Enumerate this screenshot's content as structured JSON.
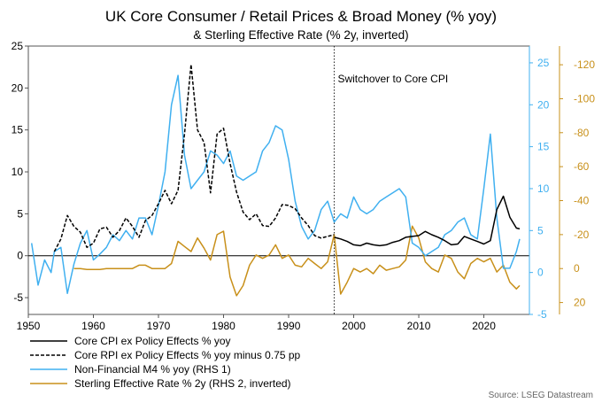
{
  "chart_data": {
    "type": "line",
    "title": "UK Core Consumer / Retail Prices & Broad Money (% yoy)",
    "subtitle": "& Sterling Effective Rate (% 2y, inverted)",
    "annotation": "Switchover to Core CPI",
    "switchover_year": 1997,
    "source": "Source: LSEG Datastream",
    "x_axis": {
      "range": [
        1950,
        2027
      ],
      "ticks": [
        1950,
        1960,
        1970,
        1980,
        1990,
        2000,
        2010,
        2020
      ]
    },
    "y_left": {
      "range": [
        -7,
        25
      ],
      "ticks": [
        -5,
        0,
        5,
        10,
        15,
        20,
        25
      ]
    },
    "y_right1": {
      "range": [
        -5,
        27
      ],
      "ticks": [
        -5,
        0,
        5,
        10,
        15,
        20,
        25
      ],
      "color": "#40b0f0"
    },
    "y_right2": {
      "range": [
        27,
        -131
      ],
      "inverted": true,
      "ticks": [
        "20",
        "0",
        "-20",
        "-40",
        "-60",
        "-80",
        "-100",
        "-120"
      ],
      "tick_values": [
        20,
        0,
        -20,
        -40,
        -60,
        -80,
        -100,
        -120
      ],
      "color": "#c8901a"
    },
    "series": [
      {
        "name": "Core CPI ex Policy Effects % yoy",
        "axis": "left",
        "color": "#000000",
        "style": "solid",
        "points": [
          [
            1997,
            2.2
          ],
          [
            1998,
            2.0
          ],
          [
            1999,
            1.7
          ],
          [
            2000,
            1.3
          ],
          [
            2001,
            1.2
          ],
          [
            2002,
            1.5
          ],
          [
            2003,
            1.3
          ],
          [
            2004,
            1.2
          ],
          [
            2005,
            1.3
          ],
          [
            2006,
            1.6
          ],
          [
            2007,
            1.8
          ],
          [
            2008,
            2.2
          ],
          [
            2009,
            2.3
          ],
          [
            2010,
            2.4
          ],
          [
            2011,
            2.9
          ],
          [
            2012,
            2.5
          ],
          [
            2013,
            2.2
          ],
          [
            2014,
            1.8
          ],
          [
            2015,
            1.3
          ],
          [
            2016,
            1.4
          ],
          [
            2017,
            2.3
          ],
          [
            2018,
            2.0
          ],
          [
            2019,
            1.7
          ],
          [
            2020,
            1.4
          ],
          [
            2021,
            1.8
          ],
          [
            2022,
            5.5
          ],
          [
            2023,
            7.1
          ],
          [
            2024,
            4.6
          ],
          [
            2025,
            3.3
          ],
          [
            2025.5,
            3.2
          ]
        ]
      },
      {
        "name": "Core RPI ex Policy Effects % yoy minus 0.75 pp",
        "axis": "left",
        "color": "#000000",
        "style": "dashed",
        "points": [
          [
            1954,
            0.5
          ],
          [
            1955,
            2.0
          ],
          [
            1956,
            4.8
          ],
          [
            1957,
            3.5
          ],
          [
            1958,
            2.8
          ],
          [
            1959,
            1.0
          ],
          [
            1960,
            1.5
          ],
          [
            1961,
            3.2
          ],
          [
            1962,
            3.4
          ],
          [
            1963,
            2.2
          ],
          [
            1964,
            3.0
          ],
          [
            1965,
            4.5
          ],
          [
            1966,
            3.5
          ],
          [
            1967,
            2.2
          ],
          [
            1968,
            4.2
          ],
          [
            1969,
            4.8
          ],
          [
            1970,
            6.2
          ],
          [
            1971,
            7.8
          ],
          [
            1972,
            6.2
          ],
          [
            1973,
            7.8
          ],
          [
            1974,
            14.5
          ],
          [
            1975,
            22.8
          ],
          [
            1976,
            15.0
          ],
          [
            1977,
            13.5
          ],
          [
            1978,
            7.5
          ],
          [
            1979,
            14.5
          ],
          [
            1980,
            15.2
          ],
          [
            1981,
            11.0
          ],
          [
            1982,
            7.6
          ],
          [
            1983,
            5.2
          ],
          [
            1984,
            4.3
          ],
          [
            1985,
            5.0
          ],
          [
            1986,
            3.6
          ],
          [
            1987,
            3.5
          ],
          [
            1988,
            4.5
          ],
          [
            1989,
            6.1
          ],
          [
            1990,
            6.0
          ],
          [
            1991,
            5.6
          ],
          [
            1992,
            4.5
          ],
          [
            1993,
            3.6
          ],
          [
            1994,
            2.4
          ],
          [
            1995,
            2.1
          ],
          [
            1996,
            2.3
          ],
          [
            1997,
            2.5
          ]
        ]
      },
      {
        "name": "Non-Financial M4 % yoy (RHS 1)",
        "axis": "right1",
        "color": "#40b0f0",
        "style": "solid",
        "points": [
          [
            1950.5,
            3.5
          ],
          [
            1951.5,
            -1.5
          ],
          [
            1952.5,
            1.5
          ],
          [
            1953.5,
            0.0
          ],
          [
            1954,
            2.5
          ],
          [
            1955,
            3.0
          ],
          [
            1956,
            -2.5
          ],
          [
            1957,
            1.0
          ],
          [
            1958,
            3.5
          ],
          [
            1959,
            5.0
          ],
          [
            1960,
            1.5
          ],
          [
            1961,
            2.2
          ],
          [
            1962,
            3.0
          ],
          [
            1963,
            4.5
          ],
          [
            1964,
            3.8
          ],
          [
            1965,
            5.0
          ],
          [
            1966,
            4.0
          ],
          [
            1967,
            6.5
          ],
          [
            1968,
            6.5
          ],
          [
            1969,
            4.5
          ],
          [
            1970,
            8.0
          ],
          [
            1971,
            12.0
          ],
          [
            1972,
            20.0
          ],
          [
            1973,
            23.5
          ],
          [
            1974,
            14.0
          ],
          [
            1975,
            10.0
          ],
          [
            1976,
            11.0
          ],
          [
            1977,
            12.0
          ],
          [
            1978,
            14.5
          ],
          [
            1979,
            14.0
          ],
          [
            1980,
            13.0
          ],
          [
            1981,
            14.5
          ],
          [
            1982,
            11.5
          ],
          [
            1983,
            11.0
          ],
          [
            1984,
            11.5
          ],
          [
            1985,
            12.0
          ],
          [
            1986,
            14.5
          ],
          [
            1987,
            15.5
          ],
          [
            1988,
            17.5
          ],
          [
            1989,
            17.0
          ],
          [
            1990,
            13.5
          ],
          [
            1991,
            8.5
          ],
          [
            1992,
            5.5
          ],
          [
            1993,
            4.0
          ],
          [
            1994,
            5.0
          ],
          [
            1995,
            7.5
          ],
          [
            1996,
            8.5
          ],
          [
            1997,
            6.0
          ],
          [
            1998,
            7.0
          ],
          [
            1999,
            6.5
          ],
          [
            2000,
            9.0
          ],
          [
            2001,
            7.5
          ],
          [
            2002,
            7.0
          ],
          [
            2003,
            7.5
          ],
          [
            2004,
            8.5
          ],
          [
            2005,
            9.0
          ],
          [
            2006,
            9.5
          ],
          [
            2007,
            10.0
          ],
          [
            2008,
            9.0
          ],
          [
            2009,
            3.5
          ],
          [
            2010,
            3.0
          ],
          [
            2011,
            2.0
          ],
          [
            2012,
            2.5
          ],
          [
            2013,
            3.0
          ],
          [
            2014,
            4.5
          ],
          [
            2015,
            5.0
          ],
          [
            2016,
            6.0
          ],
          [
            2017,
            6.5
          ],
          [
            2018,
            4.5
          ],
          [
            2019,
            4.0
          ],
          [
            2020,
            10.0
          ],
          [
            2021,
            16.5
          ],
          [
            2022,
            6.5
          ],
          [
            2023,
            0.5
          ],
          [
            2024,
            0.5
          ],
          [
            2025,
            2.5
          ],
          [
            2025.5,
            4.0
          ]
        ]
      },
      {
        "name": "Sterling Effective Rate % 2y (RHS 2, inverted)",
        "axis": "right2",
        "color": "#c8901a",
        "style": "solid",
        "points": [
          [
            1957,
            0.0
          ],
          [
            1958,
            0.0
          ],
          [
            1959,
            0.5
          ],
          [
            1960,
            0.5
          ],
          [
            1961,
            0.5
          ],
          [
            1962,
            0.0
          ],
          [
            1963,
            0.0
          ],
          [
            1964,
            0.0
          ],
          [
            1965,
            0.0
          ],
          [
            1966,
            0.0
          ],
          [
            1967,
            -2.0
          ],
          [
            1968,
            -2.0
          ],
          [
            1969,
            0.0
          ],
          [
            1970,
            0.0
          ],
          [
            1971,
            0.0
          ],
          [
            1972,
            -3.0
          ],
          [
            1973,
            -16.0
          ],
          [
            1974,
            -13.0
          ],
          [
            1975,
            -10.0
          ],
          [
            1976,
            -18.0
          ],
          [
            1977,
            -12.0
          ],
          [
            1978,
            -5.0
          ],
          [
            1979,
            -20.0
          ],
          [
            1980,
            -22.0
          ],
          [
            1981,
            5.0
          ],
          [
            1982,
            16.0
          ],
          [
            1983,
            10.0
          ],
          [
            1984,
            -2.0
          ],
          [
            1985,
            -8.0
          ],
          [
            1986,
            -6.0
          ],
          [
            1987,
            -8.0
          ],
          [
            1988,
            -14.0
          ],
          [
            1989,
            -6.0
          ],
          [
            1990,
            -8.0
          ],
          [
            1991,
            -2.0
          ],
          [
            1992,
            -1.0
          ],
          [
            1993,
            -6.0
          ],
          [
            1994,
            -3.0
          ],
          [
            1995,
            0.0
          ],
          [
            1996,
            -4.0
          ],
          [
            1997,
            -20.0
          ],
          [
            1998,
            15.0
          ],
          [
            1999,
            8.0
          ],
          [
            2000,
            0.0
          ],
          [
            2001,
            2.0
          ],
          [
            2002,
            0.0
          ],
          [
            2003,
            3.0
          ],
          [
            2004,
            -2.0
          ],
          [
            2005,
            1.0
          ],
          [
            2006,
            0.0
          ],
          [
            2007,
            -1.0
          ],
          [
            2008,
            -5.0
          ],
          [
            2009,
            -25.0
          ],
          [
            2010,
            -18.0
          ],
          [
            2011,
            -4.0
          ],
          [
            2012,
            0.0
          ],
          [
            2013,
            2.0
          ],
          [
            2014,
            -8.0
          ],
          [
            2015,
            -6.0
          ],
          [
            2016,
            2.0
          ],
          [
            2017,
            6.0
          ],
          [
            2018,
            -3.0
          ],
          [
            2019,
            -6.0
          ],
          [
            2020,
            -4.0
          ],
          [
            2021,
            -6.0
          ],
          [
            2022,
            2.0
          ],
          [
            2023,
            -2.0
          ],
          [
            2024,
            8.0
          ],
          [
            2025,
            12.0
          ],
          [
            2025.5,
            10.0
          ]
        ]
      }
    ],
    "legend": {
      "position": "bottom-left"
    }
  }
}
